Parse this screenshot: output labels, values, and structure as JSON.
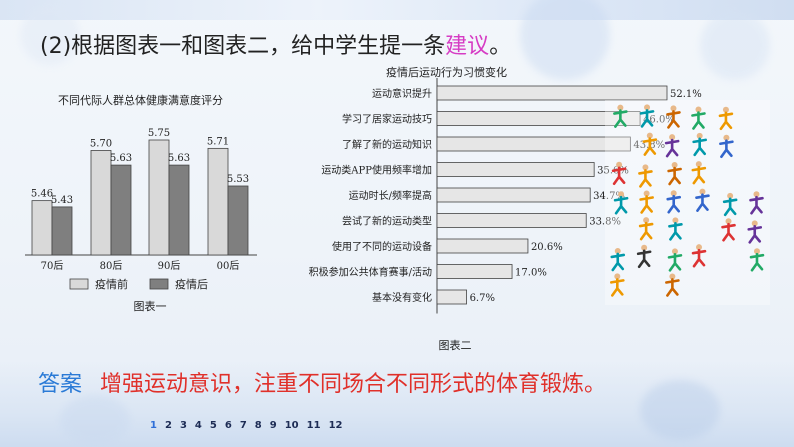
{
  "question": {
    "prefix": "(2)根据图表一和图表二，给中学生提一条",
    "highlight": "建议",
    "suffix": "。"
  },
  "chart1": {
    "title": "不同代际人群总体健康满意度评分",
    "caption": "图表一",
    "legend_before": "疫情前",
    "legend_after": "疫情后"
  },
  "chart2": {
    "title": "疫情后运动行为习惯变化",
    "caption": "图表二"
  },
  "chart_data": [
    {
      "type": "bar",
      "title": "不同代际人群总体健康满意度评分",
      "categories": [
        "70后",
        "80后",
        "90后",
        "00后"
      ],
      "series": [
        {
          "name": "疫情前",
          "values": [
            5.46,
            5.7,
            5.75,
            5.71
          ],
          "color": "#d9d9d9"
        },
        {
          "name": "疫情后",
          "values": [
            5.43,
            5.63,
            5.63,
            5.53
          ],
          "color": "#7f7f7f"
        }
      ],
      "value_labels": {
        "before": [
          "5.46",
          "5.70",
          "5.75",
          "5.71"
        ],
        "after": [
          "5.43",
          "5.63",
          "5.63",
          "5.53"
        ]
      },
      "legend": "bottom",
      "grid": false
    },
    {
      "type": "bar",
      "orientation": "horizontal",
      "title": "疫情后运动行为习惯变化",
      "categories": [
        "运动意识提升",
        "学习了居家运动技巧",
        "了解了新的运动知识",
        "运动类APP使用频率增加",
        "运动时长/频率提高",
        "尝试了新的运动类型",
        "使用了不同的运动设备",
        "积极参加公共体育赛事/活动",
        "基本没有变化"
      ],
      "values": [
        52.1,
        46.0,
        43.8,
        35.6,
        34.7,
        33.8,
        20.6,
        17.0,
        6.7
      ],
      "value_labels": [
        "52.1%",
        "46.0%",
        "43.8%",
        "35.6%",
        "34.7%",
        "33.8%",
        "20.6%",
        "17.0%",
        "6.7%"
      ],
      "unit": "%",
      "xlim": [
        0,
        52.1
      ],
      "grid": false
    }
  ],
  "answer": {
    "label": "答案",
    "text": "增强运动意识，注重不同场合不同形式的体育锻炼。"
  },
  "pager": {
    "pages": [
      "1",
      "2",
      "3",
      "4",
      "5",
      "6",
      "7",
      "8",
      "9",
      "10",
      "11",
      "12"
    ],
    "current": "1"
  },
  "colors": {
    "highlight": "#d63cc4",
    "answer_label": "#2a7ad6",
    "answer_text": "#e0302a",
    "pager_active": "#2f6fd8"
  },
  "image": {
    "name": "sports-figures-collage"
  }
}
